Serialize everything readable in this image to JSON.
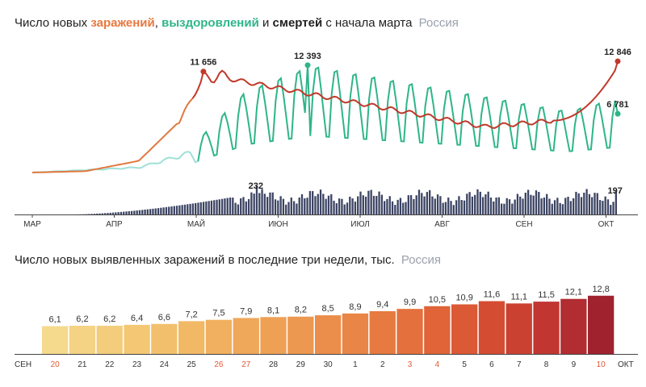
{
  "chart_data": [
    {
      "type": "line",
      "title_parts": {
        "prefix": "Число новых",
        "infected": "заражений",
        "sep": ",",
        "recovered": "выздоровлений",
        "and": "и",
        "deaths": "смертей",
        "suffix": "с начала марта"
      },
      "region": "Россия",
      "x_labels": [
        "МАР",
        "АПР",
        "МАЙ",
        "ИЮН",
        "ИЮЛ",
        "АВГ",
        "СЕН",
        "ОКТ"
      ],
      "colors": {
        "infected": "#e0783f",
        "infected_late": "#c0392b",
        "recovered": "#2eb58a",
        "recovered_early": "#9fe0d8",
        "deaths": "#3c4463"
      },
      "series": [
        {
          "name": "заражений",
          "key": "infected"
        },
        {
          "name": "выздоровлений",
          "key": "recovered"
        },
        {
          "name": "смертей",
          "key": "deaths"
        }
      ],
      "annotations": {
        "infected_peak": "11 656",
        "recovered_peak": "12 393",
        "infected_last": "12 846",
        "recovered_last": "6 781",
        "deaths_peak": "232",
        "deaths_last": "197"
      },
      "values": {
        "infected_peak": 11656,
        "recovered_peak": 12393,
        "infected_last": 12846,
        "recovered_last": 6781,
        "deaths_peak": 232,
        "deaths_last": 197
      }
    },
    {
      "type": "bar",
      "title": "Число новых выявленных заражений в последние три недели, тыс.",
      "region": "Россия",
      "categories": [
        "20",
        "21",
        "22",
        "23",
        "24",
        "25",
        "26",
        "27",
        "28",
        "29",
        "30",
        "1",
        "2",
        "3",
        "4",
        "5",
        "6",
        "7",
        "8",
        "9",
        "10"
      ],
      "values": [
        6.1,
        6.2,
        6.2,
        6.4,
        6.6,
        7.2,
        7.5,
        7.9,
        8.1,
        8.2,
        8.5,
        8.9,
        9.4,
        9.9,
        10.5,
        10.9,
        11.6,
        11.1,
        11.5,
        12.1,
        12.8
      ],
      "value_labels": [
        "6,1",
        "6,2",
        "6,2",
        "6,4",
        "6,6",
        "7,2",
        "7,5",
        "7,9",
        "8,1",
        "8,2",
        "8,5",
        "8,9",
        "9,4",
        "9,9",
        "10,5",
        "10,9",
        "11,6",
        "11,1",
        "11,5",
        "12,1",
        "12,8"
      ],
      "weekend": [
        true,
        false,
        false,
        false,
        false,
        false,
        true,
        true,
        false,
        false,
        false,
        false,
        false,
        true,
        true,
        false,
        false,
        false,
        false,
        false,
        true
      ],
      "left_label": "СЕН",
      "right_label": "ОКТ",
      "ylim": [
        0,
        14
      ]
    }
  ]
}
